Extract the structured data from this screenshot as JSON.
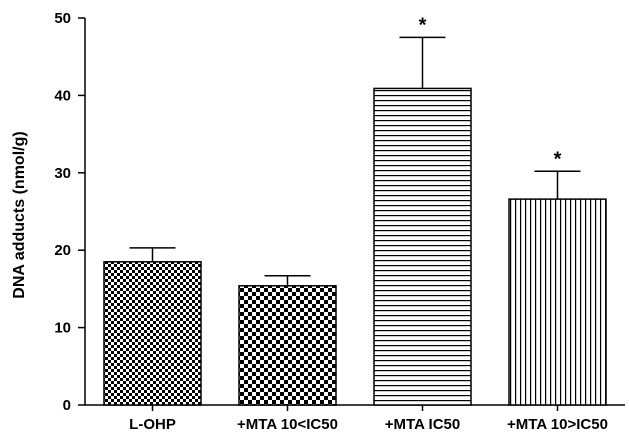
{
  "chart_data": {
    "type": "bar",
    "title": "",
    "xlabel": "",
    "ylabel": "DNA adducts (nmol/g)",
    "ylim": [
      0,
      50
    ],
    "yticks": [
      0,
      10,
      20,
      30,
      40,
      50
    ],
    "categories": [
      "L-OHP",
      "+MTA 10<IC50",
      "+MTA IC50",
      "+MTA 10>IC50"
    ],
    "values": [
      18.5,
      15.4,
      40.9,
      26.6
    ],
    "errors": [
      1.8,
      1.3,
      6.6,
      3.6
    ],
    "annotations": [
      "",
      "",
      "*",
      "*"
    ],
    "fill_patterns": [
      "checker-fine",
      "checker-coarse",
      "horizontal-lines",
      "vertical-lines"
    ],
    "grid": false,
    "colors": {
      "stroke": "#000000",
      "background": "#ffffff"
    }
  }
}
